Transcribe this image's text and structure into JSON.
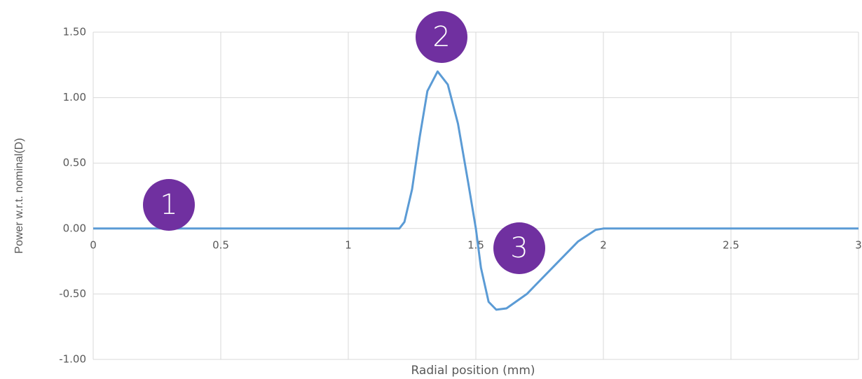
{
  "chart_data": {
    "type": "line",
    "x_label": "Radial position (mm)",
    "y_label": "Power w.r.t. nominal(D)",
    "annotations": [
      "1",
      "2",
      "3"
    ],
    "xlim": [
      0,
      3
    ],
    "xticks": [
      0,
      0.5,
      1,
      1.5,
      2,
      2.5,
      3
    ],
    "ylim": [
      -1,
      1.5
    ],
    "yticks": [
      {
        "value": -1,
        "label": "-1.00"
      },
      {
        "value": -0.5,
        "label": "-0.50"
      },
      {
        "value": 0,
        "label": "0.00"
      },
      {
        "value": 0.5,
        "label": "0.50"
      },
      {
        "value": 1,
        "label": "1.00"
      },
      {
        "value": 1.5,
        "label": "1.50"
      }
    ],
    "grid": true,
    "series": [
      {
        "color": "#5b9bd5",
        "x": [
          0,
          1.2,
          1.22,
          1.25,
          1.28,
          1.31,
          1.35,
          1.39,
          1.43,
          1.47,
          1.5,
          1.52,
          1.55,
          1.58,
          1.62,
          1.7,
          1.8,
          1.9,
          1.97,
          2.0,
          3.0
        ],
        "values": [
          0,
          0,
          0.05,
          0.3,
          0.7,
          1.05,
          1.2,
          1.1,
          0.8,
          0.35,
          0,
          -0.3,
          -0.56,
          -0.62,
          -0.61,
          -0.5,
          -0.3,
          -0.1,
          -0.01,
          0,
          0
        ]
      }
    ]
  }
}
